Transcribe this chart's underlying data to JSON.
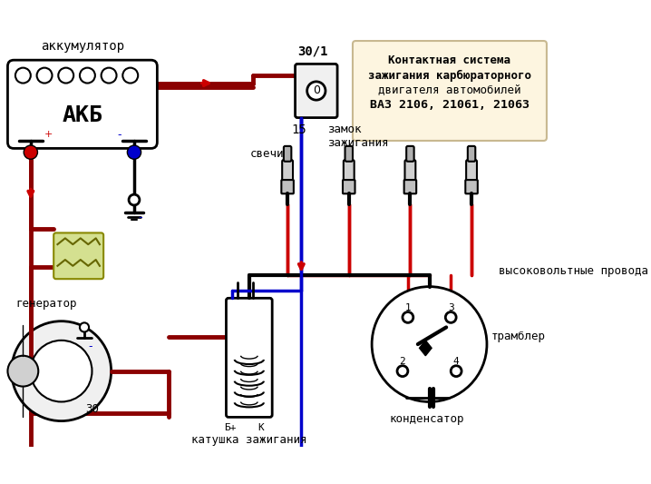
{
  "title_box_text": "Контактная система\nзажигания карбюраторного\nдвигателя автомобилей\nВАЗ 2106, 21061, 21063",
  "title_box_bg": "#fdf5e0",
  "title_box_border": "#c8b890",
  "bg_color": "#ffffff",
  "dark_red": "#8b0000",
  "red": "#cc0000",
  "blue": "#0000cc",
  "black": "#000000",
  "gray": "#888888",
  "label_akkum": "аккумулятор",
  "label_akb": "АКБ",
  "label_generator": "генератор",
  "label_zamok": "замок\nзажигания",
  "label_svechi": "свечи",
  "label_vvprovoda": "высоковольтные провода",
  "label_katushka": "катушка зажигания",
  "label_kondensator": "конденсатор",
  "label_trambler": "трамблер",
  "label_30_1": "30/1",
  "label_15": "15",
  "label_30": "30",
  "label_bplus": "Б+",
  "label_k": "К",
  "label_1": "1",
  "label_2": "2",
  "label_3": "3",
  "label_4": "4"
}
